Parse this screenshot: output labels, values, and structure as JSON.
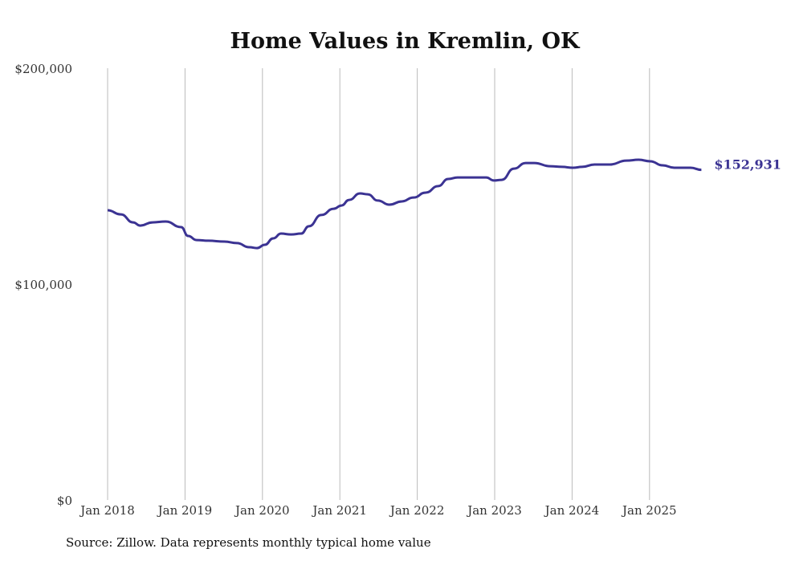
{
  "chart_data": {
    "type": "line",
    "title": "Home Values in Kremlin, OK",
    "xlabel": "",
    "ylabel": "",
    "ylim": [
      0,
      200000
    ],
    "xlim": [
      2018.0,
      2025.75
    ],
    "y_ticks": [
      0,
      100000,
      200000
    ],
    "y_tick_labels": [
      "$0",
      "$100,000",
      "$200,000"
    ],
    "x_ticks": [
      2018,
      2019,
      2020,
      2021,
      2022,
      2023,
      2024,
      2025
    ],
    "x_tick_labels": [
      "Jan 2018",
      "Jan 2019",
      "Jan 2020",
      "Jan 2021",
      "Jan 2022",
      "Jan 2023",
      "Jan 2024",
      "Jan 2025"
    ],
    "grid": "vertical",
    "color": "#3b3393",
    "end_label": "$152,931",
    "series": [
      {
        "name": "Typical home value",
        "points": [
          [
            2018.0,
            134200
          ],
          [
            2018.17,
            132300
          ],
          [
            2018.33,
            128600
          ],
          [
            2018.42,
            127100
          ],
          [
            2018.58,
            128600
          ],
          [
            2018.75,
            129000
          ],
          [
            2018.95,
            126400
          ],
          [
            2019.04,
            122300
          ],
          [
            2019.15,
            120400
          ],
          [
            2019.3,
            120100
          ],
          [
            2019.51,
            119700
          ],
          [
            2019.67,
            119000
          ],
          [
            2019.83,
            117100
          ],
          [
            2019.93,
            116700
          ],
          [
            2020.03,
            118200
          ],
          [
            2020.14,
            121200
          ],
          [
            2020.24,
            123400
          ],
          [
            2020.37,
            123000
          ],
          [
            2020.5,
            123400
          ],
          [
            2020.6,
            126800
          ],
          [
            2020.76,
            132000
          ],
          [
            2020.92,
            134900
          ],
          [
            2021.02,
            136400
          ],
          [
            2021.12,
            139000
          ],
          [
            2021.26,
            142000
          ],
          [
            2021.36,
            141600
          ],
          [
            2021.49,
            138700
          ],
          [
            2021.64,
            136800
          ],
          [
            2021.8,
            138300
          ],
          [
            2021.95,
            140100
          ],
          [
            2022.11,
            142400
          ],
          [
            2022.27,
            145400
          ],
          [
            2022.4,
            148700
          ],
          [
            2022.52,
            149400
          ],
          [
            2022.73,
            149400
          ],
          [
            2022.89,
            149400
          ],
          [
            2022.99,
            148000
          ],
          [
            2023.09,
            148300
          ],
          [
            2023.25,
            153500
          ],
          [
            2023.4,
            156100
          ],
          [
            2023.51,
            156100
          ],
          [
            2023.72,
            154600
          ],
          [
            2023.87,
            154300
          ],
          [
            2024.01,
            153900
          ],
          [
            2024.13,
            154300
          ],
          [
            2024.29,
            155400
          ],
          [
            2024.49,
            155400
          ],
          [
            2024.7,
            157200
          ],
          [
            2024.86,
            157600
          ],
          [
            2025.01,
            156900
          ],
          [
            2025.17,
            155000
          ],
          [
            2025.32,
            153900
          ],
          [
            2025.53,
            153900
          ],
          [
            2025.67,
            152931
          ]
        ]
      }
    ],
    "source": "Source: Zillow. Data represents monthly typical home value"
  }
}
